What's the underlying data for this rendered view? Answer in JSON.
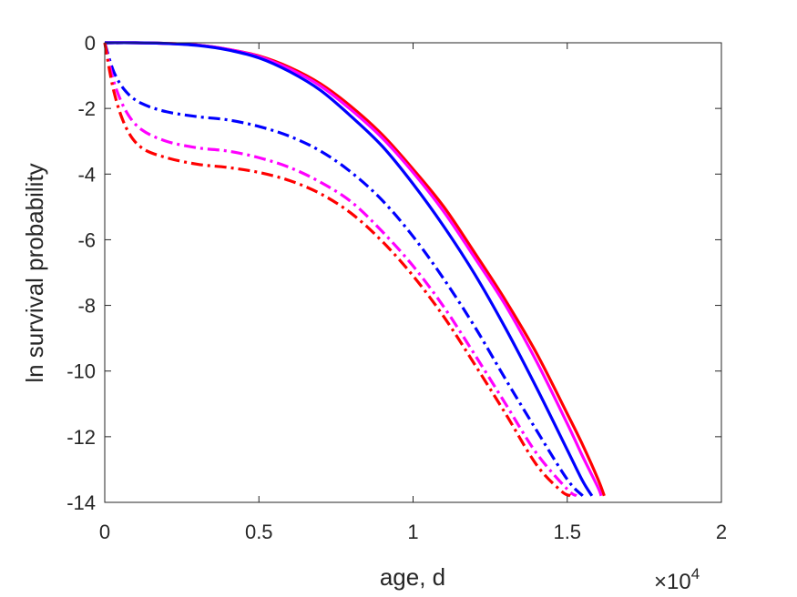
{
  "chart_data": {
    "type": "line",
    "title": "",
    "xlabel": "age, d",
    "ylabel": "ln survival probability",
    "x_exponent_label": {
      "base": "×10",
      "power": "4"
    },
    "xlim": [
      0,
      20000
    ],
    "ylim": [
      -14,
      0
    ],
    "x_ticks": [
      0,
      5000,
      10000,
      15000,
      20000
    ],
    "x_tick_labels": [
      "0",
      "0.5",
      "1",
      "1.5",
      "2"
    ],
    "y_ticks": [
      0,
      -2,
      -4,
      -6,
      -8,
      -10,
      -12,
      -14
    ],
    "y_tick_labels": [
      "0",
      "-2",
      "-4",
      "-6",
      "-8",
      "-10",
      "-12",
      "-14"
    ],
    "grid": false,
    "legend": "none",
    "series": [
      {
        "color": "#ff0000",
        "style": "solid",
        "x": [
          0,
          1000,
          2000,
          3000,
          4000,
          5000,
          6000,
          7000,
          8000,
          9000,
          10000,
          11000,
          12000,
          13000,
          14000,
          15000,
          15500,
          16000,
          16200
        ],
        "y": [
          0,
          0,
          -0.02,
          -0.07,
          -0.2,
          -0.4,
          -0.75,
          -1.25,
          -1.95,
          -2.8,
          -3.85,
          -5.0,
          -6.4,
          -7.85,
          -9.45,
          -11.3,
          -12.25,
          -13.3,
          -13.8
        ]
      },
      {
        "color": "#ff00ff",
        "style": "solid",
        "x": [
          0,
          1000,
          2000,
          3000,
          4000,
          5000,
          6000,
          7000,
          8000,
          9000,
          10000,
          11000,
          12000,
          13000,
          14000,
          15000,
          15500,
          16000,
          16100
        ],
        "y": [
          0,
          0,
          -0.02,
          -0.07,
          -0.2,
          -0.42,
          -0.8,
          -1.32,
          -2.05,
          -2.9,
          -3.95,
          -5.15,
          -6.55,
          -8.0,
          -9.7,
          -11.6,
          -12.6,
          -13.55,
          -13.8
        ]
      },
      {
        "color": "#0000ff",
        "style": "solid",
        "x": [
          0,
          1000,
          2000,
          3000,
          4000,
          5000,
          6000,
          7000,
          8000,
          9000,
          10000,
          11000,
          12000,
          13000,
          14000,
          15000,
          15500,
          15800
        ],
        "y": [
          0,
          0,
          -0.02,
          -0.08,
          -0.22,
          -0.46,
          -0.88,
          -1.45,
          -2.25,
          -3.15,
          -4.3,
          -5.6,
          -7.05,
          -8.7,
          -10.5,
          -12.4,
          -13.35,
          -13.8
        ]
      },
      {
        "color": "#0000ff",
        "style": "dashdot",
        "x": [
          0,
          300,
          700,
          1200,
          2000,
          3000,
          4000,
          5000,
          6000,
          7000,
          8000,
          9000,
          10000,
          11000,
          12000,
          13000,
          14000,
          15000,
          15500
        ],
        "y": [
          0,
          -0.9,
          -1.5,
          -1.85,
          -2.1,
          -2.25,
          -2.35,
          -2.55,
          -2.85,
          -3.3,
          -3.95,
          -4.8,
          -5.9,
          -7.2,
          -8.65,
          -10.25,
          -11.8,
          -13.3,
          -13.8
        ]
      },
      {
        "color": "#ff00ff",
        "style": "dashdot",
        "x": [
          0,
          300,
          700,
          1200,
          2000,
          3000,
          4000,
          5000,
          6000,
          7000,
          8000,
          9000,
          10000,
          11000,
          12000,
          13000,
          14000,
          15000,
          15300
        ],
        "y": [
          0,
          -1.2,
          -2.1,
          -2.65,
          -3.0,
          -3.2,
          -3.3,
          -3.5,
          -3.8,
          -4.25,
          -4.85,
          -5.75,
          -6.8,
          -8.05,
          -9.5,
          -11.0,
          -12.5,
          -13.6,
          -13.8
        ]
      },
      {
        "color": "#ff0000",
        "style": "dashdot",
        "x": [
          0,
          300,
          700,
          1200,
          2000,
          3000,
          4000,
          5000,
          6000,
          7000,
          8000,
          9000,
          10000,
          11000,
          12000,
          13000,
          14000,
          14800,
          15100
        ],
        "y": [
          0,
          -1.5,
          -2.6,
          -3.2,
          -3.5,
          -3.7,
          -3.8,
          -3.95,
          -4.2,
          -4.6,
          -5.2,
          -6.05,
          -7.1,
          -8.35,
          -9.8,
          -11.3,
          -12.85,
          -13.65,
          -13.8
        ]
      }
    ]
  }
}
